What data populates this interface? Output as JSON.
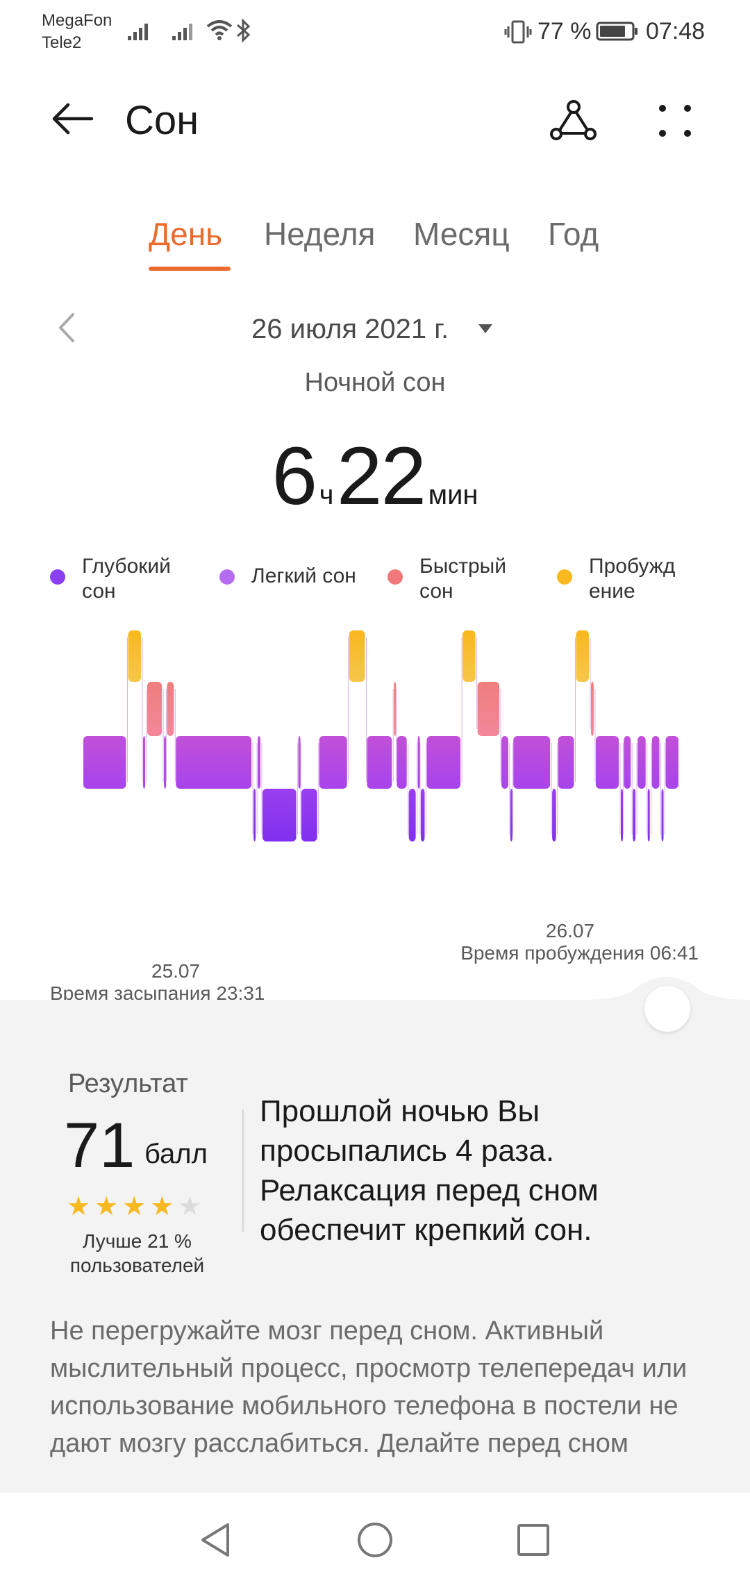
{
  "status_bar": {
    "carrier1": "MegaFon",
    "carrier2": "Tele2",
    "battery_percent": "77 %",
    "time": "07:48",
    "icons": [
      "signal-icon",
      "signal-icon",
      "wifi-icon",
      "bluetooth-icon",
      "vibrate-icon",
      "battery-icon"
    ]
  },
  "header": {
    "title": "Сон",
    "back_icon": "arrow-left-icon",
    "share_icon": "share-icon",
    "more_icon": "more-icon"
  },
  "tabs": [
    {
      "label": "День",
      "active": true
    },
    {
      "label": "Неделя",
      "active": false
    },
    {
      "label": "Месяц",
      "active": false
    },
    {
      "label": "Год",
      "active": false
    }
  ],
  "date": {
    "label": "26 июля 2021 г.",
    "prev_icon": "chevron-left-icon",
    "dropdown_icon": "caret-down-icon"
  },
  "sleep_type": "Ночной сон",
  "duration": {
    "hours": "6",
    "hours_unit": "ч",
    "minutes": "22",
    "minutes_unit": "мин"
  },
  "legend": [
    {
      "label": "Глубокий сон",
      "color": "#8a3ff0"
    },
    {
      "label": "Легкий сон",
      "color": "#b56cf0"
    },
    {
      "label": "Быстрый сон",
      "color": "#f07878"
    },
    {
      "label": "Пробуждение",
      "color": "#f8b820"
    }
  ],
  "chart_data": {
    "type": "area",
    "stage_levels": [
      "Пробуждение",
      "Быстрый сон",
      "Легкий сон",
      "Глубокий сон"
    ],
    "segments": [
      {
        "stage": "Легкий сон",
        "start": 0.0,
        "end": 0.075
      },
      {
        "stage": "Пробуждение",
        "start": 0.075,
        "end": 0.1
      },
      {
        "stage": "Легкий сон",
        "start": 0.1,
        "end": 0.107
      },
      {
        "stage": "Быстрый сон",
        "start": 0.107,
        "end": 0.135
      },
      {
        "stage": "Легкий сон",
        "start": 0.135,
        "end": 0.14
      },
      {
        "stage": "Быстрый сон",
        "start": 0.14,
        "end": 0.155
      },
      {
        "stage": "Легкий сон",
        "start": 0.155,
        "end": 0.285
      },
      {
        "stage": "Глубокий сон",
        "start": 0.285,
        "end": 0.292
      },
      {
        "stage": "Легкий сон",
        "start": 0.292,
        "end": 0.3
      },
      {
        "stage": "Глубокий сон",
        "start": 0.3,
        "end": 0.36
      },
      {
        "stage": "Легкий сон",
        "start": 0.36,
        "end": 0.365
      },
      {
        "stage": "Глубокий сон",
        "start": 0.365,
        "end": 0.395
      },
      {
        "stage": "Легкий сон",
        "start": 0.395,
        "end": 0.445
      },
      {
        "stage": "Пробуждение",
        "start": 0.445,
        "end": 0.475
      },
      {
        "stage": "Легкий сон",
        "start": 0.475,
        "end": 0.52
      },
      {
        "stage": "Быстрый сон",
        "start": 0.52,
        "end": 0.525
      },
      {
        "stage": "Легкий сон",
        "start": 0.525,
        "end": 0.545
      },
      {
        "stage": "Глубокий сон",
        "start": 0.545,
        "end": 0.56
      },
      {
        "stage": "Легкий сон",
        "start": 0.56,
        "end": 0.565
      },
      {
        "stage": "Глубокий сон",
        "start": 0.565,
        "end": 0.575
      },
      {
        "stage": "Легкий сон",
        "start": 0.575,
        "end": 0.635
      },
      {
        "stage": "Пробуждение",
        "start": 0.635,
        "end": 0.66
      },
      {
        "stage": "Быстрый сон",
        "start": 0.66,
        "end": 0.7
      },
      {
        "stage": "Легкий сон",
        "start": 0.7,
        "end": 0.715
      },
      {
        "stage": "Глубокий сон",
        "start": 0.715,
        "end": 0.72
      },
      {
        "stage": "Легкий сон",
        "start": 0.72,
        "end": 0.785
      },
      {
        "stage": "Глубокий сон",
        "start": 0.785,
        "end": 0.795
      },
      {
        "stage": "Легкий сон",
        "start": 0.795,
        "end": 0.825
      },
      {
        "stage": "Пробуждение",
        "start": 0.825,
        "end": 0.85
      },
      {
        "stage": "Быстрый сон",
        "start": 0.85,
        "end": 0.858
      },
      {
        "stage": "Легкий сон",
        "start": 0.858,
        "end": 0.9
      },
      {
        "stage": "Глубокий сон",
        "start": 0.9,
        "end": 0.905
      },
      {
        "stage": "Легкий сон",
        "start": 0.905,
        "end": 0.92
      },
      {
        "stage": "Глубокий сон",
        "start": 0.92,
        "end": 0.928
      },
      {
        "stage": "Легкий сон",
        "start": 0.928,
        "end": 0.945
      },
      {
        "stage": "Глубокий сон",
        "start": 0.945,
        "end": 0.952
      },
      {
        "stage": "Легкий сон",
        "start": 0.952,
        "end": 0.968
      },
      {
        "stage": "Глубокий сон",
        "start": 0.968,
        "end": 0.975
      },
      {
        "stage": "Легкий сон",
        "start": 0.975,
        "end": 1.0
      }
    ],
    "start_label": "25.07",
    "end_label": "26.07",
    "sleep_time_label": "Время засыпания 23:31",
    "wake_time_label": "Время пробуждения 06:41"
  },
  "score": {
    "title": "Результат",
    "value": "71",
    "unit": "балл",
    "stars": 4,
    "stars_total": 5,
    "better_than": "Лучше 21 % пользователей",
    "summary": "Прошлой ночью Вы просыпались 4 раза. Релаксация перед сном обеспечит крепкий сон."
  },
  "advice": "Не перегружайте мозг перед сном. Активный мыслительный процесс, просмотр телепередач или использование мобильного телефона в постели не дают мозгу расслабиться. Делайте перед сном",
  "nav": {
    "back_icon": "nav-back-icon",
    "home_icon": "nav-home-icon",
    "recent_icon": "nav-recent-icon"
  }
}
